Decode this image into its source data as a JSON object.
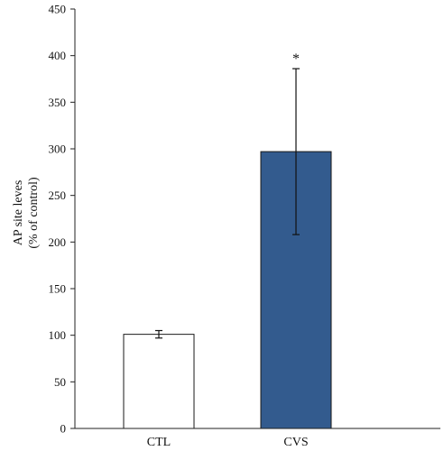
{
  "chart_data": {
    "type": "bar",
    "categories": [
      "CTL",
      "CVS"
    ],
    "values": [
      101,
      297
    ],
    "errors": [
      4,
      89
    ],
    "bar_colors": [
      "#ffffff",
      "#335b8e"
    ],
    "annotations": [
      "",
      "*"
    ],
    "ylabel_line1": "AP site leves",
    "ylabel_line2": "(% of control)",
    "ylim": [
      0,
      450
    ],
    "yticks": [
      "0",
      "50",
      "100",
      "150",
      "200",
      "250",
      "300",
      "350",
      "400",
      "450"
    ],
    "grid": false
  }
}
